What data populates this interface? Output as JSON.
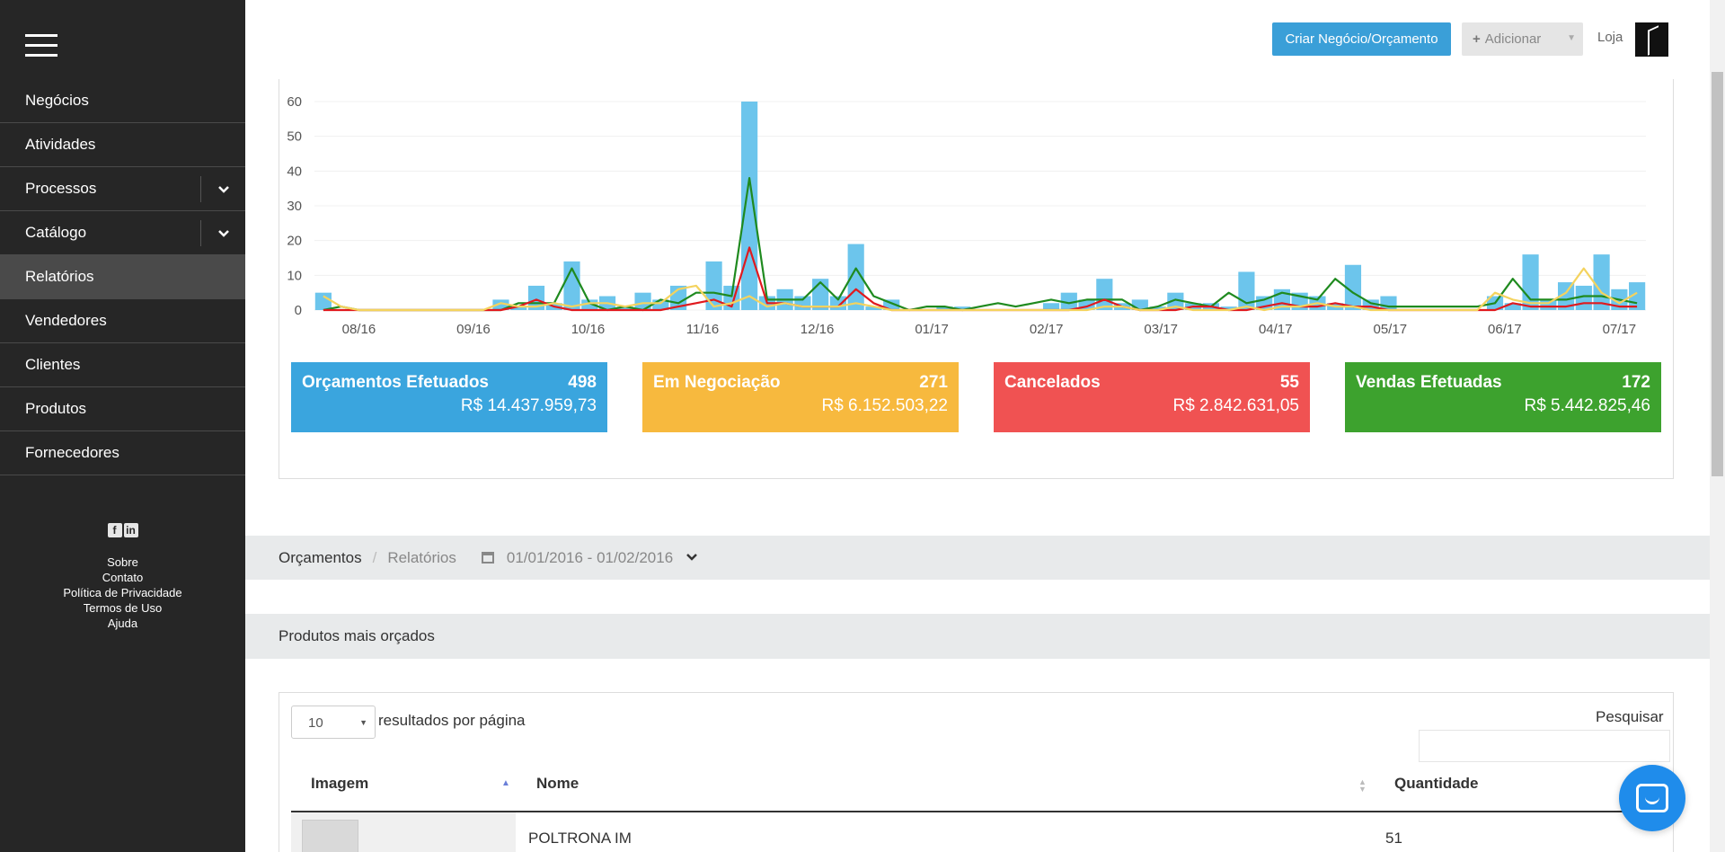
{
  "sidebar": {
    "items": [
      {
        "label": "Negócios"
      },
      {
        "label": "Atividades"
      },
      {
        "label": "Processos"
      },
      {
        "label": "Catálogo"
      },
      {
        "label": "Relatórios"
      },
      {
        "label": "Vendedores"
      },
      {
        "label": "Clientes"
      },
      {
        "label": "Produtos"
      },
      {
        "label": "Fornecedores"
      }
    ],
    "footer": {
      "sobre": "Sobre",
      "contato": "Contato",
      "privacidade": "Política de Privacidade",
      "termos": "Termos de Uso",
      "ajuda": "Ajuda"
    }
  },
  "topbar": {
    "create_label": "Criar Negócio/Orçamento",
    "add_label": "Adicionar",
    "store_label": "Loja"
  },
  "colors": {
    "orcamentos": "#3aa5de",
    "negociacao": "#f7b93e",
    "cancelados": "#f05252",
    "vendas": "#3da22e",
    "line_red": "#e0191e",
    "line_green": "#1f8a1f",
    "line_yellow": "#f4d35e",
    "bar": "#6cc5ec"
  },
  "stats": [
    {
      "title": "Orçamentos Efetuados",
      "count": "498",
      "value": "R$ 14.437.959,73"
    },
    {
      "title": "Em Negociação",
      "count": "271",
      "value": "R$ 6.152.503,22"
    },
    {
      "title": "Cancelados",
      "count": "55",
      "value": "R$ 2.842.631,05"
    },
    {
      "title": "Vendas Efetuadas",
      "count": "172",
      "value": "R$ 5.442.825,46"
    }
  ],
  "chart_data": {
    "type": "bar",
    "xlabel": "",
    "ylabel": "",
    "ylim": [
      0,
      60
    ],
    "yticks": [
      0,
      10,
      20,
      30,
      40,
      50,
      60
    ],
    "xtick_labels": [
      "08/16",
      "09/16",
      "10/16",
      "11/16",
      "12/16",
      "01/17",
      "02/17",
      "03/17",
      "04/17",
      "05/17",
      "06/17",
      "07/17"
    ],
    "x_points_per_month": 4,
    "series": [
      {
        "kind": "bar",
        "values": [
          5,
          0,
          0,
          0,
          0,
          0,
          0,
          0,
          0,
          0,
          3,
          1,
          7,
          2,
          14,
          3,
          4,
          1,
          5,
          3,
          7,
          0,
          14,
          7,
          60,
          4,
          6,
          4,
          9,
          4,
          19,
          1,
          3,
          0,
          0,
          1,
          1,
          0,
          0,
          0,
          0,
          2,
          5,
          3,
          9,
          2,
          3,
          1,
          5,
          2,
          2,
          1,
          11,
          4,
          6,
          5,
          4,
          2,
          13,
          3,
          4,
          0,
          0,
          0,
          0,
          0,
          4,
          2,
          16,
          3,
          8,
          7,
          16,
          6,
          8
        ]
      },
      {
        "kind": "line",
        "color": "#1f8a1f",
        "values": [
          0,
          1,
          0,
          0,
          0,
          0,
          0,
          0,
          0,
          0,
          0,
          2,
          2,
          2,
          12,
          2,
          0,
          1,
          0,
          3,
          2,
          5,
          5,
          4,
          38,
          3,
          3,
          3,
          8,
          3,
          12,
          4,
          2,
          0,
          1,
          1,
          0,
          1,
          2,
          1,
          2,
          3,
          2,
          3,
          3,
          3,
          0,
          1,
          3,
          2,
          1,
          5,
          2,
          3,
          5,
          4,
          3,
          9,
          5,
          2,
          1,
          1,
          1,
          1,
          1,
          1,
          2,
          9,
          3,
          3,
          3,
          4,
          4,
          3,
          2
        ]
      },
      {
        "kind": "line",
        "color": "#e0191e",
        "values": [
          0,
          0,
          0,
          0,
          0,
          0,
          0,
          0,
          0,
          0,
          0,
          1,
          3,
          1,
          0,
          0,
          0,
          0,
          0,
          0,
          1,
          2,
          3,
          1,
          18,
          2,
          2,
          1,
          1,
          1,
          6,
          2,
          0,
          0,
          0,
          0,
          0,
          0,
          0,
          0,
          0,
          0,
          0,
          1,
          3,
          1,
          0,
          0,
          0,
          1,
          1,
          0,
          0,
          1,
          2,
          1,
          1,
          2,
          1,
          1,
          0,
          0,
          0,
          0,
          0,
          0,
          0,
          2,
          1,
          1,
          1,
          2,
          2,
          1,
          1
        ]
      },
      {
        "kind": "line",
        "color": "#f4d35e",
        "values": [
          4,
          1,
          0,
          0,
          0,
          0,
          0,
          0,
          0,
          0,
          2,
          1,
          1,
          2,
          1,
          2,
          2,
          1,
          2,
          2,
          6,
          7,
          1,
          2,
          4,
          1,
          2,
          1,
          1,
          1,
          2,
          1,
          0,
          0,
          0,
          0,
          0,
          0,
          0,
          0,
          0,
          0,
          0,
          0,
          1,
          1,
          0,
          0,
          1,
          0,
          0,
          0,
          1,
          0,
          1,
          1,
          2,
          1,
          1,
          0,
          0,
          0,
          0,
          0,
          0,
          0,
          5,
          3,
          2,
          2,
          5,
          12,
          5,
          2,
          5
        ]
      }
    ]
  },
  "report": {
    "breadcrumb_1": "Orçamentos",
    "separator": "/",
    "breadcrumb_2": "Relatórios",
    "date_range": "01/01/2016 - 01/02/2016"
  },
  "products": {
    "title": "Produtos mais orçados",
    "page_size": "10",
    "per_page_label": "resultados por página",
    "search_label": "Pesquisar",
    "columns": [
      "Imagem",
      "Nome",
      "Quantidade"
    ],
    "rows": [
      {
        "nome": "POLTRONA IM",
        "quantidade": "51"
      }
    ]
  }
}
